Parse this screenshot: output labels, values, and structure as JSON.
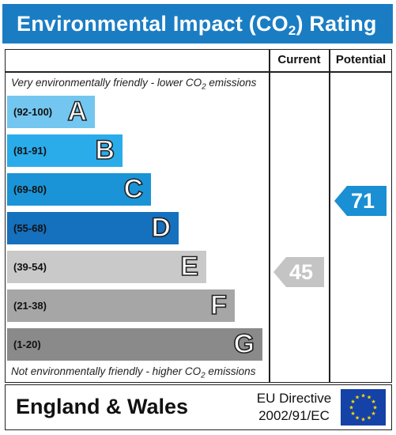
{
  "title": {
    "main": "Environmental Impact (CO",
    "sub": "2",
    "tail": ") Rating"
  },
  "columns": {
    "current": "Current",
    "potential": "Potential"
  },
  "notes": {
    "top": {
      "pre": "Very environmentally friendly - lower CO",
      "sub": "2",
      "post": " emissions"
    },
    "bottom": {
      "pre": "Not environmentally friendly - higher CO",
      "sub": "2",
      "post": " emissions"
    }
  },
  "bands": [
    {
      "range": "(92-100)",
      "letter": "A",
      "color": "#73c6ef"
    },
    {
      "range": "(81-91)",
      "letter": "B",
      "color": "#2aaceb"
    },
    {
      "range": "(69-80)",
      "letter": "C",
      "color": "#1a94d6"
    },
    {
      "range": "(55-68)",
      "letter": "D",
      "color": "#1570bd"
    },
    {
      "range": "(39-54)",
      "letter": "E",
      "color": "#c9c9c9"
    },
    {
      "range": "(21-38)",
      "letter": "F",
      "color": "#a6a6a6"
    },
    {
      "range": "(1-20)",
      "letter": "G",
      "color": "#8a8a8a"
    }
  ],
  "ratings": {
    "current": {
      "value": "45",
      "band": "E",
      "color": "#c4c4c4"
    },
    "potential": {
      "value": "71",
      "band": "C",
      "color": "#1a8fd3"
    }
  },
  "footer": {
    "region": "England & Wales",
    "directive_line1": "EU Directive",
    "directive_line2": "2002/91/EC",
    "flag_icon": "eu-flag-icon"
  }
}
